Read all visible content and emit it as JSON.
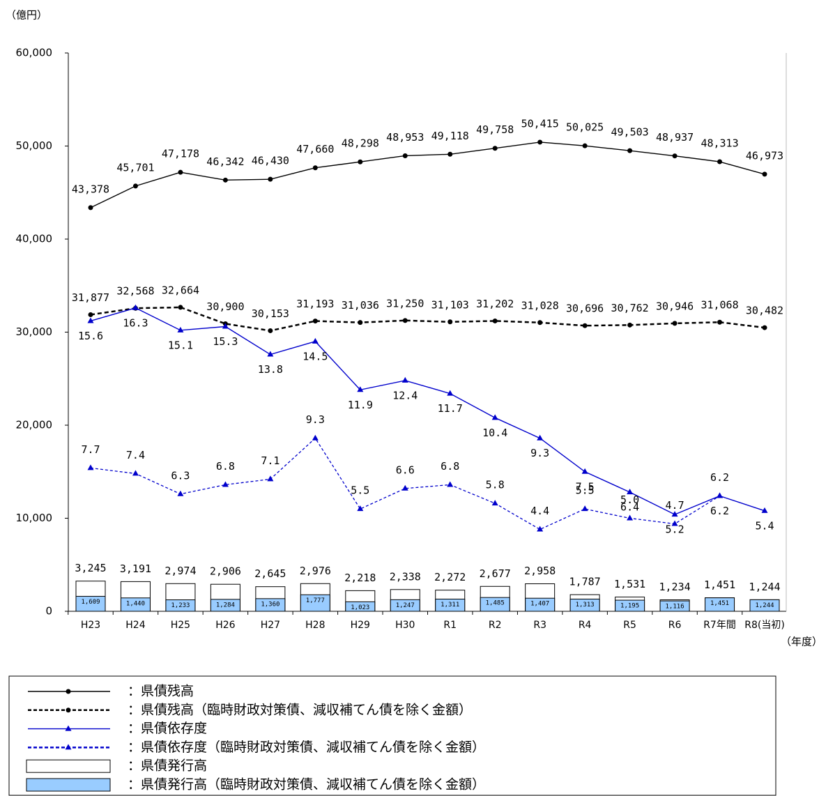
{
  "chart_data": {
    "type": "combo",
    "y_unit_label": "（億円）",
    "x_unit_label": "（年度）",
    "categories": [
      "H23",
      "H24",
      "H25",
      "H26",
      "H27",
      "H28",
      "H29",
      "H30",
      "R1",
      "R2",
      "R3",
      "R4",
      "R5",
      "R6",
      "R7年間",
      "R8(当初)"
    ],
    "ylim": [
      0,
      60000
    ],
    "yticks": [
      0,
      {
        "value": 10000,
        "label": "10,000"
      },
      {
        "value": 20000,
        "label": "20,000"
      },
      {
        "value": 30000,
        "label": "30,000"
      },
      {
        "value": 40000,
        "label": "40,000"
      },
      {
        "value": 50000,
        "label": "50,000"
      },
      {
        "value": 60000,
        "label": "60,000"
      }
    ],
    "y2lim": [
      0,
      30
    ],
    "series": [
      {
        "name": "：県債残高",
        "type": "line",
        "style": "solid",
        "marker": "circle",
        "color": "#000000",
        "values": [
          43378,
          45701,
          47178,
          46342,
          46430,
          47660,
          48298,
          48953,
          49118,
          49758,
          50415,
          50025,
          49503,
          48937,
          48313,
          46973
        ],
        "value_labels": [
          "43,378",
          "45,701",
          "47,178",
          "46,342",
          "46,430",
          "47,660",
          "48,298",
          "48,953",
          "49,118",
          "49,758",
          "50,415",
          "50,025",
          "49,503",
          "48,937",
          "48,313",
          "46,973"
        ]
      },
      {
        "name": "：県債残高（臨時財政対策債、減収補てん債を除く金額）",
        "type": "line",
        "style": "dashed",
        "marker": "circle",
        "color": "#000000",
        "values": [
          31877,
          32568,
          32664,
          30900,
          30153,
          31193,
          31036,
          31250,
          31103,
          31202,
          31028,
          30696,
          30762,
          30946,
          31068,
          30482
        ],
        "value_labels": [
          "31,877",
          "32,568",
          "32,664",
          "30,900",
          "30,153",
          "31,193",
          "31,036",
          "31,250",
          "31,103",
          "31,202",
          "31,028",
          "30,696",
          "30,762",
          "30,946",
          "31,068",
          "30,482"
        ]
      },
      {
        "name": "：県債依存度",
        "type": "line",
        "style": "solid",
        "marker": "triangle",
        "color": "#0000cc",
        "axis": "y2",
        "values": [
          15.6,
          16.3,
          15.1,
          15.3,
          13.8,
          14.5,
          11.9,
          12.4,
          11.7,
          10.4,
          9.3,
          7.5,
          6.4,
          5.2,
          6.2,
          5.4
        ],
        "value_labels": [
          "15.6",
          "16.3",
          "15.1",
          "15.3",
          "13.8",
          "14.5",
          "11.9",
          "12.4",
          "11.7",
          "10.4",
          "9.3",
          "7.5",
          "6.4",
          "5.2",
          "6.2",
          "5.4"
        ]
      },
      {
        "name": "：県債依存度（臨時財政対策債、減収補てん債を除く金額）",
        "type": "line",
        "style": "dashed",
        "marker": "triangle",
        "color": "#0000cc",
        "axis": "y2",
        "values": [
          7.7,
          7.4,
          6.3,
          6.8,
          7.1,
          9.3,
          5.5,
          6.6,
          6.8,
          5.8,
          4.4,
          5.5,
          5.0,
          4.7,
          6.2,
          null
        ],
        "value_labels": [
          "7.7",
          "7.4",
          "6.3",
          "6.8",
          "7.1",
          "9.3",
          "5.5",
          "6.6",
          "6.8",
          "5.8",
          "4.4",
          "5.5",
          "5.0",
          "4.7",
          "6.2",
          null
        ]
      },
      {
        "name": "：県債発行高",
        "type": "bar",
        "color": "#ffffff",
        "values": [
          3245,
          3191,
          2974,
          2906,
          2645,
          2976,
          2218,
          2338,
          2272,
          2677,
          2958,
          1787,
          1531,
          1234,
          1451,
          1244
        ],
        "value_labels": [
          "3,245",
          "3,191",
          "2,974",
          "2,906",
          "2,645",
          "2,976",
          "2,218",
          "2,338",
          "2,272",
          "2,677",
          "2,958",
          "1,787",
          "1,531",
          "1,234",
          "1,451",
          "1,244"
        ]
      },
      {
        "name": "：県債発行高（臨時財政対策債、減収補てん債を除く金額）",
        "type": "bar",
        "color": "#99ccff",
        "values": [
          1609,
          1440,
          1233,
          1284,
          1360,
          1777,
          1023,
          1247,
          1311,
          1485,
          1407,
          1313,
          1195,
          1116,
          1451,
          1244
        ],
        "value_labels": [
          "1,609",
          "1,440",
          "1,233",
          "1,284",
          "1,360",
          "1,777",
          "1,023",
          "1,247",
          "1,311",
          "1,485",
          "1,407",
          "1,313",
          "1,195",
          "1,116",
          "1,451",
          "1,244"
        ]
      }
    ]
  }
}
